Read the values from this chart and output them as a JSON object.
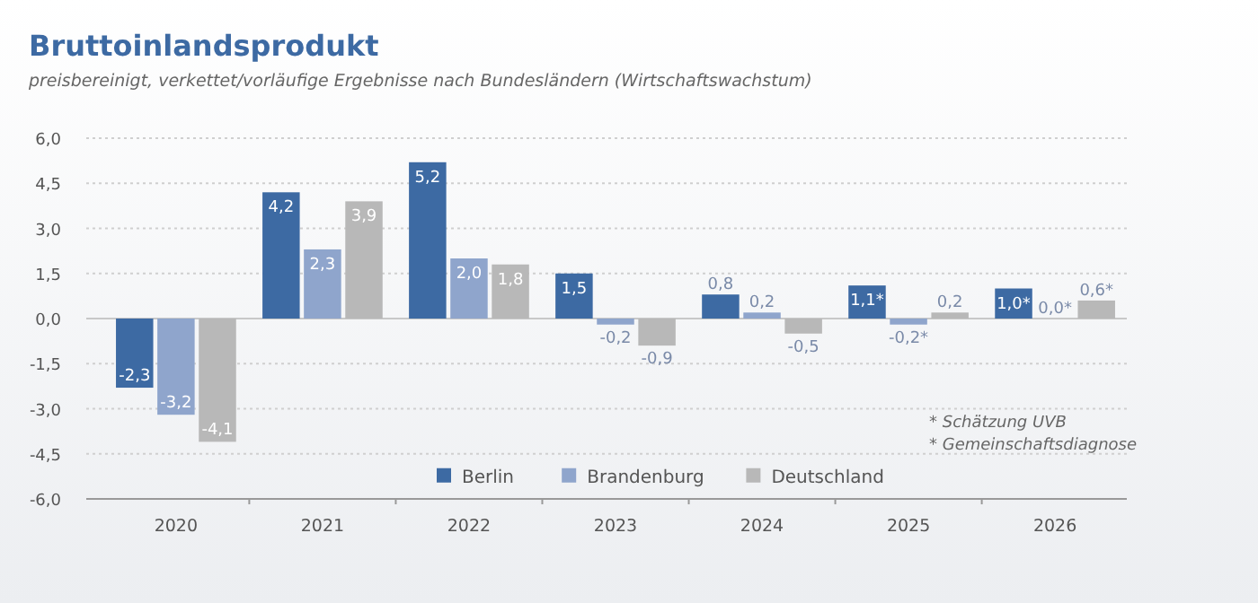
{
  "chart_data": {
    "type": "bar",
    "title": "Bruttoinlandsprodukt",
    "subtitle": "preisbereinigt, verkettet/vorläufige Ergebnisse nach Bundesländern (Wirtschaftswachstum)",
    "categories": [
      "2020",
      "2021",
      "2022",
      "2023",
      "2024",
      "2025",
      "2026"
    ],
    "series": [
      {
        "name": "Berlin",
        "color": "#3d6aa3",
        "values": [
          -2.3,
          4.2,
          5.2,
          1.5,
          0.8,
          1.1,
          1.0
        ],
        "value_labels": [
          "-2,3",
          "4,2",
          "5,2",
          "1,5",
          "0,8",
          "1,1*",
          "1,0*"
        ]
      },
      {
        "name": "Brandenburg",
        "color": "#8fa5cc",
        "values": [
          -3.2,
          2.3,
          2.0,
          -0.2,
          0.2,
          -0.2,
          0.0
        ],
        "value_labels": [
          "-3,2",
          "2,3",
          "2,0",
          "-0,2",
          "0,2",
          "-0,2*",
          "0,0*"
        ]
      },
      {
        "name": "Deutschland",
        "color": "#b8b8b8",
        "values": [
          -4.1,
          3.9,
          1.8,
          -0.9,
          -0.5,
          0.2,
          0.6
        ],
        "value_labels": [
          "-4,1",
          "3,9",
          "1,8",
          "-0,9",
          "-0,5",
          "0,2",
          "0,6*"
        ]
      }
    ],
    "ylim": [
      -6,
      6
    ],
    "yticks": [
      {
        "value": -6,
        "label": "-6,0"
      },
      {
        "value": -4.5,
        "label": "-4,5"
      },
      {
        "value": -3,
        "label": "-3,0"
      },
      {
        "value": -1.5,
        "label": "-1,5"
      },
      {
        "value": 0,
        "label": "0,0"
      },
      {
        "value": 1.5,
        "label": "1,5"
      },
      {
        "value": 3,
        "label": "3,0"
      },
      {
        "value": 4.5,
        "label": "4,5"
      },
      {
        "value": 6,
        "label": "6,0"
      }
    ],
    "grid": "y",
    "legend": "bottom",
    "annotations": [
      "* Schätzung UVB",
      "* Gemeinschaftsdiagnose"
    ]
  }
}
